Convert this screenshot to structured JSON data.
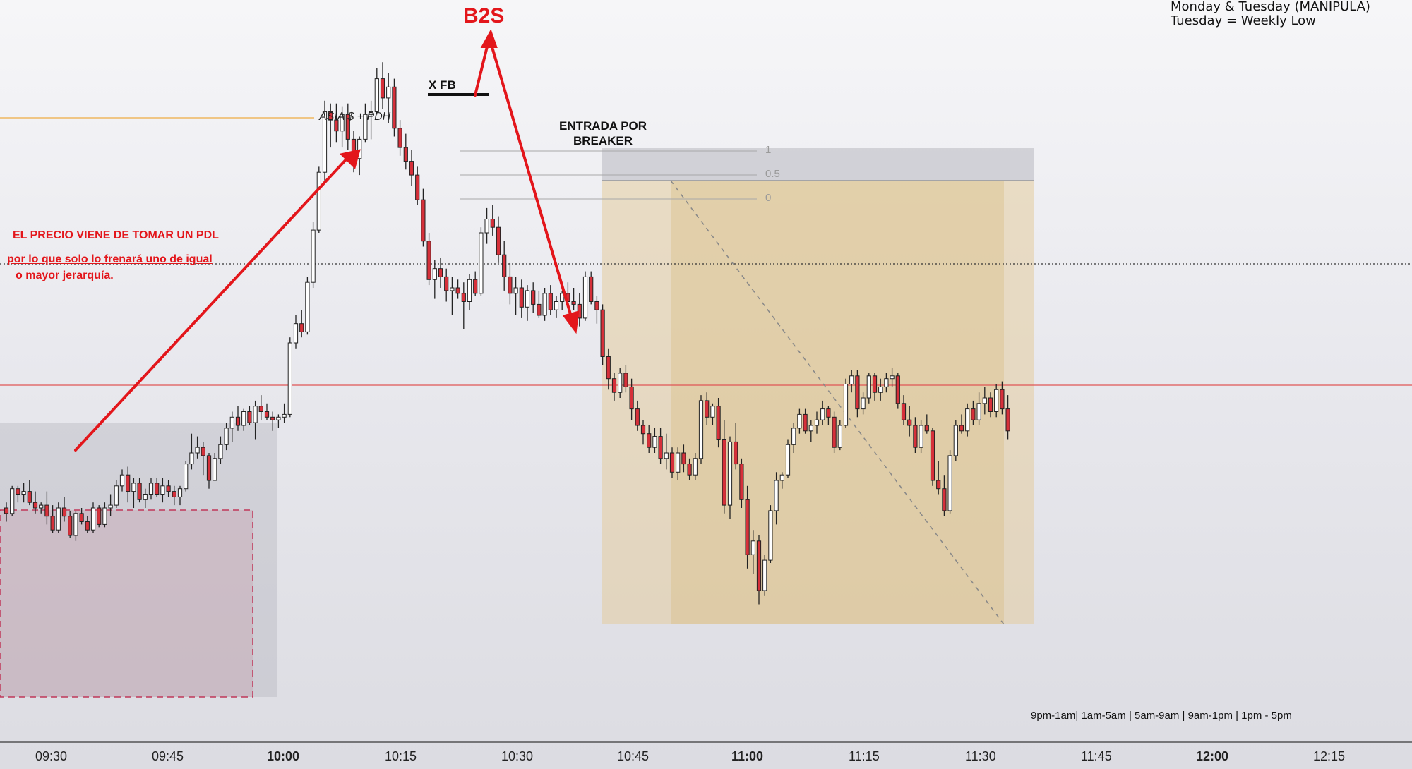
{
  "annotations": {
    "b2s": "B2S",
    "xfb": "X FB",
    "asia_pdh": "ASIA $ + PDH",
    "entrada": "ENTRADA POR\nBREAKER",
    "note_line1": "EL PRECIO VIENE DE TOMAR UN PDL",
    "note_line2": "por lo que solo lo frenará uno de igual",
    "note_line3": "o mayor jerarquía.",
    "corner_line1": "Monday & Tuesday (MANIPULA)",
    "corner_line2": "Tuesday = Weekly Low",
    "sessions": "9pm-1am|  1am-5am  |  5am-9am  |  9am-1pm  |  1pm - 5pm"
  },
  "fib_levels": [
    "1",
    "0.5",
    "0"
  ],
  "colors": {
    "bull_body": "#ffffff",
    "bear_body": "#d6303a",
    "wick": "#222222",
    "asia_line": "#f0b860",
    "red_level": "#e05555",
    "zone_tan": "#e3cc9e",
    "zone_gray": "#b8b8c0",
    "zone_pink": "#c79aa8",
    "arrow_red": "#e3161b"
  },
  "chart_data": {
    "type": "candlestick",
    "x_axis_ticks": [
      {
        "label": "09:30",
        "bold": false
      },
      {
        "label": "09:45",
        "bold": false
      },
      {
        "label": "10:00",
        "bold": true
      },
      {
        "label": "10:15",
        "bold": false
      },
      {
        "label": "10:30",
        "bold": false
      },
      {
        "label": "10:45",
        "bold": false
      },
      {
        "label": "11:00",
        "bold": true
      },
      {
        "label": "11:15",
        "bold": false
      },
      {
        "label": "11:30",
        "bold": false
      },
      {
        "label": "11:45",
        "bold": false
      },
      {
        "label": "12:00",
        "bold": true
      },
      {
        "label": "12:15",
        "bold": false
      }
    ],
    "y_axis": "price (unlabeled)",
    "grid": false,
    "candles": [
      [
        50,
        52,
        45,
        48
      ],
      [
        48,
        58,
        47,
        57
      ],
      [
        57,
        58,
        52,
        55
      ],
      [
        55,
        59,
        52,
        56
      ],
      [
        56,
        60,
        51,
        52
      ],
      [
        52,
        56,
        48,
        50
      ],
      [
        50,
        52,
        48,
        51
      ],
      [
        51,
        56,
        44,
        47
      ],
      [
        47,
        51,
        41,
        42
      ],
      [
        42,
        52,
        41,
        50
      ],
      [
        50,
        54,
        45,
        47
      ],
      [
        47,
        49,
        39,
        40
      ],
      [
        40,
        49,
        38,
        48
      ],
      [
        48,
        50,
        44,
        45
      ],
      [
        45,
        47,
        41,
        42
      ],
      [
        42,
        52,
        41,
        50
      ],
      [
        50,
        51,
        43,
        44
      ],
      [
        44,
        52,
        43,
        50
      ],
      [
        50,
        55,
        47,
        51
      ],
      [
        51,
        60,
        50,
        58
      ],
      [
        58,
        64,
        56,
        62
      ],
      [
        62,
        65,
        52,
        56
      ],
      [
        56,
        61,
        50,
        59
      ],
      [
        59,
        61,
        52,
        53
      ],
      [
        53,
        57,
        50,
        55
      ],
      [
        55,
        61,
        53,
        59
      ],
      [
        59,
        61,
        54,
        55
      ],
      [
        55,
        61,
        52,
        58
      ],
      [
        58,
        60,
        54,
        56
      ],
      [
        56,
        58,
        51,
        54
      ],
      [
        54,
        58,
        51,
        57
      ],
      [
        57,
        67,
        56,
        66
      ],
      [
        66,
        77,
        64,
        70
      ],
      [
        70,
        76,
        68,
        72
      ],
      [
        72,
        74,
        62,
        69
      ],
      [
        69,
        70,
        57,
        60
      ],
      [
        60,
        70,
        60,
        68
      ],
      [
        68,
        76,
        66,
        73
      ],
      [
        73,
        81,
        71,
        79
      ],
      [
        79,
        85,
        74,
        83
      ],
      [
        83,
        87,
        78,
        80
      ],
      [
        80,
        86,
        78,
        85
      ],
      [
        85,
        87,
        80,
        81
      ],
      [
        81,
        89,
        75,
        87
      ],
      [
        87,
        91,
        82,
        85
      ],
      [
        85,
        88,
        82,
        83
      ],
      [
        83,
        85,
        78,
        82
      ],
      [
        82,
        84,
        79,
        83
      ],
      [
        83,
        88,
        81,
        84
      ],
      [
        84,
        112,
        83,
        110
      ],
      [
        110,
        120,
        108,
        117
      ],
      [
        117,
        122,
        112,
        114
      ],
      [
        114,
        134,
        113,
        132
      ],
      [
        132,
        154,
        130,
        151
      ],
      [
        151,
        174,
        150,
        172
      ],
      [
        172,
        198,
        169,
        194
      ],
      [
        194,
        197,
        181,
        191
      ],
      [
        191,
        197,
        183,
        187
      ],
      [
        187,
        196,
        181,
        193
      ],
      [
        193,
        197,
        180,
        184
      ],
      [
        184,
        187,
        172,
        177
      ],
      [
        177,
        185,
        171,
        184
      ],
      [
        184,
        197,
        183,
        193
      ],
      [
        193,
        198,
        184,
        194
      ],
      [
        194,
        210,
        193,
        206
      ],
      [
        206,
        212,
        195,
        199
      ],
      [
        199,
        208,
        190,
        203
      ],
      [
        203,
        206,
        185,
        188
      ],
      [
        188,
        191,
        178,
        181
      ],
      [
        181,
        186,
        173,
        176
      ],
      [
        176,
        180,
        167,
        171
      ],
      [
        171,
        174,
        160,
        162
      ],
      [
        162,
        166,
        145,
        147
      ],
      [
        147,
        150,
        131,
        133
      ],
      [
        133,
        140,
        126,
        137
      ],
      [
        137,
        141,
        130,
        134
      ],
      [
        134,
        137,
        125,
        129
      ],
      [
        129,
        134,
        120,
        130
      ],
      [
        130,
        133,
        126,
        128
      ],
      [
        128,
        132,
        115,
        125
      ],
      [
        125,
        135,
        122,
        133
      ],
      [
        133,
        136,
        127,
        128
      ],
      [
        128,
        152,
        127,
        150
      ],
      [
        150,
        159,
        146,
        155
      ],
      [
        155,
        160,
        149,
        152
      ],
      [
        152,
        156,
        139,
        142
      ],
      [
        142,
        147,
        129,
        134
      ],
      [
        134,
        139,
        124,
        128
      ],
      [
        128,
        134,
        120,
        130
      ],
      [
        130,
        133,
        119,
        123
      ],
      [
        123,
        131,
        118,
        129
      ],
      [
        129,
        132,
        121,
        124
      ],
      [
        124,
        129,
        119,
        120
      ],
      [
        120,
        130,
        118,
        128
      ],
      [
        128,
        131,
        120,
        122
      ],
      [
        122,
        127,
        119,
        125
      ],
      [
        125,
        129,
        122,
        128
      ],
      [
        128,
        132,
        123,
        125
      ],
      [
        125,
        130,
        122,
        124
      ],
      [
        124,
        128,
        116,
        119
      ],
      [
        119,
        136,
        118,
        134
      ],
      [
        134,
        136,
        124,
        125
      ],
      [
        125,
        127,
        117,
        122
      ],
      [
        122,
        124,
        102,
        105
      ],
      [
        105,
        108,
        93,
        97
      ],
      [
        97,
        99,
        89,
        92
      ],
      [
        92,
        101,
        90,
        99
      ],
      [
        99,
        102,
        92,
        94
      ],
      [
        94,
        97,
        82,
        86
      ],
      [
        86,
        89,
        78,
        80
      ],
      [
        80,
        82,
        73,
        77
      ],
      [
        77,
        80,
        70,
        72
      ],
      [
        72,
        79,
        70,
        76
      ],
      [
        76,
        79,
        66,
        68
      ],
      [
        68,
        77,
        64,
        70
      ],
      [
        70,
        72,
        61,
        63
      ],
      [
        63,
        72,
        60,
        70
      ],
      [
        70,
        73,
        63,
        66
      ],
      [
        66,
        68,
        60,
        62
      ],
      [
        62,
        70,
        60,
        68
      ],
      [
        68,
        91,
        66,
        89
      ],
      [
        89,
        92,
        80,
        83
      ],
      [
        83,
        88,
        80,
        87
      ],
      [
        87,
        90,
        72,
        75
      ],
      [
        75,
        82,
        48,
        51
      ],
      [
        51,
        76,
        46,
        74
      ],
      [
        74,
        81,
        64,
        66
      ],
      [
        66,
        68,
        50,
        53
      ],
      [
        53,
        58,
        28,
        33
      ],
      [
        33,
        42,
        26,
        38
      ],
      [
        38,
        40,
        15,
        20
      ],
      [
        20,
        33,
        18,
        31
      ],
      [
        31,
        51,
        30,
        49
      ],
      [
        49,
        63,
        44,
        60
      ],
      [
        60,
        63,
        57,
        62
      ],
      [
        62,
        75,
        61,
        73
      ],
      [
        73,
        81,
        70,
        79
      ],
      [
        79,
        86,
        77,
        84
      ],
      [
        84,
        86,
        77,
        78
      ],
      [
        78,
        82,
        74,
        80
      ],
      [
        80,
        85,
        77,
        82
      ],
      [
        82,
        89,
        80,
        86
      ],
      [
        86,
        87,
        80,
        83
      ],
      [
        83,
        85,
        70,
        72
      ],
      [
        72,
        82,
        71,
        80
      ],
      [
        80,
        97,
        79,
        95
      ],
      [
        95,
        100,
        92,
        98
      ],
      [
        98,
        100,
        83,
        86
      ],
      [
        86,
        92,
        84,
        90
      ],
      [
        90,
        99,
        88,
        98
      ],
      [
        98,
        99,
        89,
        92
      ],
      [
        92,
        97,
        89,
        94
      ],
      [
        94,
        99,
        92,
        97
      ],
      [
        97,
        101,
        94,
        98
      ],
      [
        98,
        99,
        86,
        88
      ],
      [
        88,
        91,
        80,
        82
      ],
      [
        82,
        87,
        76,
        80
      ],
      [
        80,
        83,
        70,
        72
      ],
      [
        72,
        82,
        70,
        80
      ],
      [
        80,
        84,
        77,
        78
      ],
      [
        78,
        79,
        58,
        60
      ],
      [
        60,
        67,
        55,
        57
      ],
      [
        57,
        62,
        47,
        49
      ],
      [
        49,
        71,
        48,
        69
      ],
      [
        69,
        82,
        67,
        80
      ],
      [
        80,
        84,
        77,
        78
      ],
      [
        78,
        88,
        76,
        86
      ],
      [
        86,
        89,
        80,
        82
      ],
      [
        82,
        92,
        80,
        88
      ],
      [
        88,
        94,
        84,
        90
      ],
      [
        90,
        92,
        83,
        85
      ],
      [
        85,
        95,
        83,
        93
      ],
      [
        93,
        96,
        84,
        86
      ],
      [
        86,
        91,
        75,
        78
      ]
    ],
    "horizontal_levels": [
      {
        "name": "ASIA $ + PDH",
        "price": 222
      },
      {
        "name": "dotted level",
        "price": 148
      },
      {
        "name": "red level",
        "price": 100
      }
    ],
    "fib": [
      {
        "level": "1",
        "price": 188
      },
      {
        "level": "0.5",
        "price": 181
      },
      {
        "level": "0",
        "price": 174
      }
    ]
  }
}
